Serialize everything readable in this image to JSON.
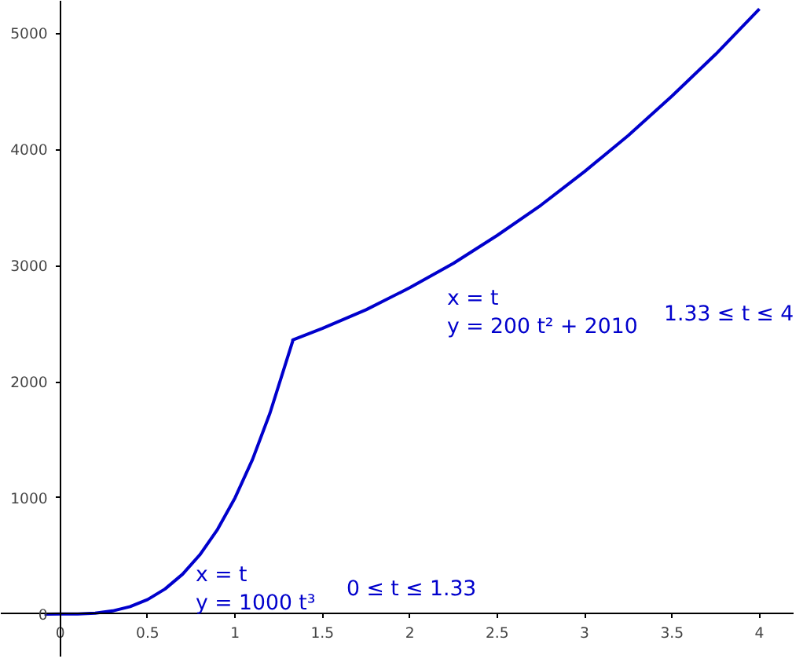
{
  "chart_data": {
    "type": "line",
    "x": [
      -0.09,
      0,
      0.1,
      0.2,
      0.3,
      0.4,
      0.5,
      0.6,
      0.7,
      0.8,
      0.9,
      1.0,
      1.1,
      1.2,
      1.33,
      1.33,
      1.5,
      1.75,
      2,
      2.25,
      2.5,
      2.75,
      3,
      3.25,
      3.5,
      3.75,
      4
    ],
    "series": [
      {
        "color": "#0000cc",
        "values": [
          -1,
          0,
          1,
          8,
          27,
          64,
          125,
          216,
          343,
          512,
          729,
          1000,
          1330,
          1730,
          2350,
          2360,
          2460,
          2620,
          2810,
          3020,
          3260,
          3520,
          3810,
          4120,
          4460,
          4820,
          5210
        ]
      }
    ],
    "xlim": [
      -0.34,
      4.2
    ],
    "ylim": [
      -373,
      5280
    ],
    "xticks": [
      0,
      0.5,
      1,
      1.5,
      2,
      2.5,
      3,
      3.5,
      4
    ],
    "yticks": [
      0,
      1000,
      2000,
      3000,
      4000,
      5000
    ],
    "marker": "none",
    "line_style": "solid",
    "annotations": [
      "x = t",
      "y = 1000 t³",
      "0 ≤ t ≤ 1.33",
      "x = t",
      "y = 200 t² + 2010",
      "1.33 ≤ t ≤ 4"
    ]
  }
}
